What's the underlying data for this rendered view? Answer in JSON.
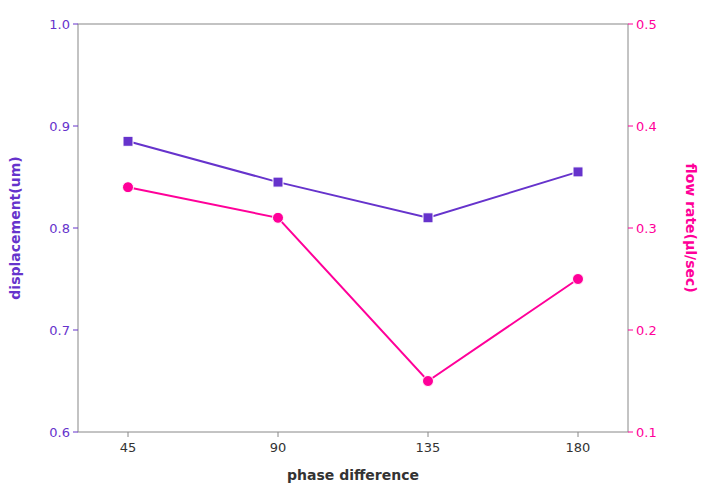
{
  "chart_data": {
    "type": "line",
    "x": [
      45,
      90,
      135,
      180
    ],
    "xlim": [
      30,
      195
    ],
    "xticks": [
      45,
      90,
      135,
      180
    ],
    "ylim": [
      0.6,
      1.0
    ],
    "yticks": [
      0.6,
      0.7,
      0.8,
      0.9,
      {
        "value": 1.0,
        "label": "1.0"
      }
    ],
    "y2lim": [
      0.1,
      0.5
    ],
    "y2ticks": [
      0.1,
      0.2,
      0.3,
      0.4,
      0.5
    ],
    "x_label": "phase difference",
    "y_label": "displacement(um)",
    "y2_label": "flow rate(μl/sec)",
    "grid": false,
    "series": [
      {
        "color": "#6633CC",
        "marker": "square",
        "line_style": "solid",
        "values": [
          0.885,
          0.845,
          0.81,
          0.855
        ]
      },
      {
        "color": "#FF0099",
        "marker": "circle",
        "line_style": "solid",
        "axis": "y2",
        "values": [
          0.34,
          0.31,
          0.15,
          0.25
        ]
      }
    ]
  }
}
